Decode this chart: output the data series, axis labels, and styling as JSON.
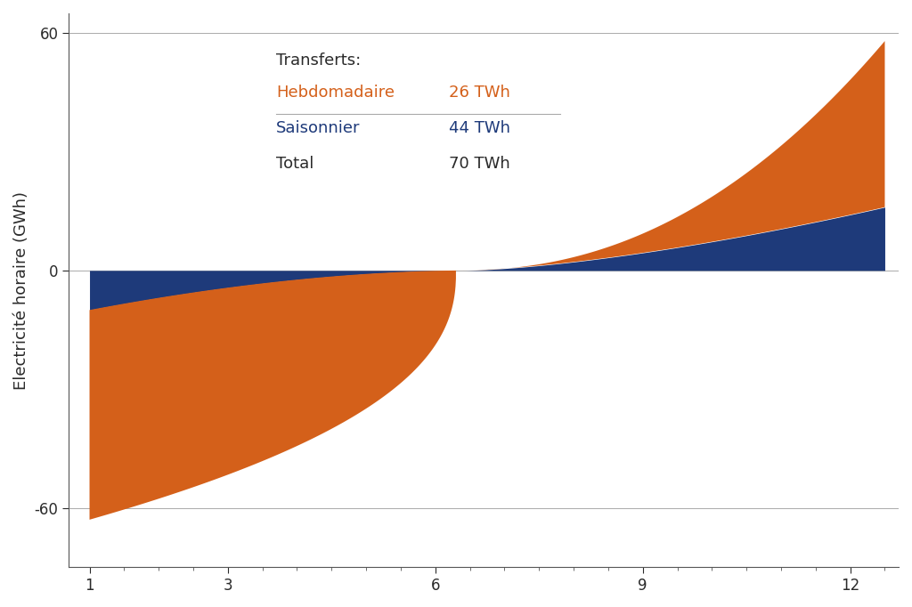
{
  "xlabel": "",
  "ylabel": "Electricité horaire (GWh)",
  "xlim": [
    0.7,
    12.7
  ],
  "ylim": [
    -75,
    65
  ],
  "yticks": [
    -60,
    0,
    60
  ],
  "xticks": [
    1,
    3,
    6,
    9,
    12
  ],
  "orange_color": "#D4601A",
  "blue_color": "#1E3A7A",
  "background_color": "#FFFFFF",
  "grid_color": "#AAAAAA",
  "text_transferts": "Transferts:",
  "text_hebdo": "Hebdomadaire",
  "text_hebdo_val": "26 TWh",
  "text_sais": "Saisonnier",
  "text_sais_val": "44 TWh",
  "text_total": "Total",
  "text_total_val": "70 TWh",
  "text_color_black": "#2A2A2A",
  "text_color_orange": "#D4601A",
  "text_color_blue": "#1E3A7A",
  "fontsize_legend": 13,
  "fontsize_axis_label": 13,
  "fontsize_tick": 12
}
